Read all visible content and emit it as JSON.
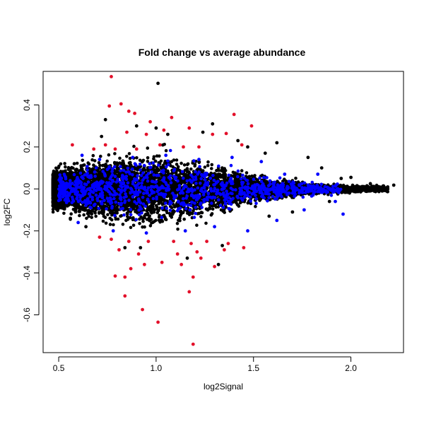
{
  "chart_data": {
    "type": "scatter",
    "title": "Fold change vs average abundance",
    "xlabel": "log2Signal",
    "ylabel": "log2FC",
    "xlim": [
      0.42,
      2.27
    ],
    "ylim": [
      -0.78,
      0.56
    ],
    "xticks": [
      0.5,
      1.0,
      1.5,
      2.0
    ],
    "xtick_labels": [
      "0.5",
      "1.0",
      "1.5",
      "2.0"
    ],
    "yticks": [
      -0.6,
      -0.4,
      -0.2,
      0.0,
      0.2,
      0.4
    ],
    "ytick_labels": [
      "-0.6",
      "-0.4",
      "-0.2",
      "0.0",
      "0.2",
      "0.4"
    ],
    "grid": false,
    "legend": "none",
    "colors": {
      "all": "#000000",
      "mid": "#0000ff",
      "high": "#e3102a"
    },
    "series": [
      {
        "color": "#000000",
        "points": [
          [
            1.01,
            0.503
          ],
          [
            0.74,
            0.33
          ],
          [
            0.9,
            0.3
          ],
          [
            1.0,
            0.29
          ],
          [
            1.06,
            0.26
          ],
          [
            1.24,
            0.27
          ],
          [
            1.29,
            0.31
          ],
          [
            1.62,
            0.22
          ],
          [
            1.78,
            0.15
          ],
          [
            0.58,
            0.12
          ],
          [
            0.56,
            -0.14
          ],
          [
            0.64,
            -0.18
          ],
          [
            0.92,
            -0.28
          ],
          [
            1.16,
            -0.33
          ],
          [
            1.34,
            -0.27
          ],
          [
            1.7,
            -0.11
          ],
          [
            1.95,
            0.05
          ],
          [
            2.0,
            0.055
          ],
          [
            2.22,
            0.018
          ],
          [
            2.18,
            0.005
          ],
          [
            2.1,
            0.025
          ],
          [
            1.89,
            -0.06
          ],
          [
            1.85,
            0.1
          ],
          [
            0.72,
            0.25
          ],
          [
            1.47,
            0.2
          ],
          [
            1.58,
            -0.13
          ],
          [
            0.84,
            -0.28
          ],
          [
            1.42,
            0.23
          ],
          [
            1.56,
            0.17
          ],
          [
            1.32,
            -0.36
          ]
        ]
      },
      {
        "color": "#0000ff",
        "points": [
          [
            0.62,
            0.16
          ],
          [
            0.71,
            0.14
          ],
          [
            0.88,
            0.15
          ],
          [
            1.05,
            0.16
          ],
          [
            1.22,
            0.14
          ],
          [
            1.39,
            0.15
          ],
          [
            1.54,
            0.13
          ],
          [
            1.66,
            0.07
          ],
          [
            1.83,
            0.07
          ],
          [
            0.6,
            -0.16
          ],
          [
            0.78,
            -0.2
          ],
          [
            0.95,
            -0.21
          ],
          [
            1.15,
            -0.2
          ],
          [
            1.3,
            -0.18
          ],
          [
            1.47,
            -0.2
          ],
          [
            1.62,
            -0.15
          ],
          [
            1.76,
            -0.1
          ],
          [
            1.92,
            -0.06
          ],
          [
            1.96,
            -0.12
          ]
        ]
      },
      {
        "color": "#e3102a",
        "points": [
          [
            0.77,
            0.535
          ],
          [
            0.82,
            0.405
          ],
          [
            0.76,
            0.395
          ],
          [
            0.86,
            0.37
          ],
          [
            0.89,
            0.36
          ],
          [
            0.97,
            0.32
          ],
          [
            1.08,
            0.34
          ],
          [
            1.4,
            0.355
          ],
          [
            1.49,
            0.3
          ],
          [
            1.36,
            0.264
          ],
          [
            1.29,
            0.26
          ],
          [
            1.17,
            0.29
          ],
          [
            1.04,
            0.28
          ],
          [
            0.95,
            0.26
          ],
          [
            0.85,
            0.27
          ],
          [
            0.74,
            0.21
          ],
          [
            0.57,
            0.21
          ],
          [
            0.68,
            0.19
          ],
          [
            0.79,
            0.19
          ],
          [
            0.9,
            0.19
          ],
          [
            1.02,
            0.21
          ],
          [
            1.14,
            0.2
          ],
          [
            1.22,
            0.2
          ],
          [
            1.44,
            0.21
          ],
          [
            0.71,
            -0.23
          ],
          [
            0.77,
            -0.24
          ],
          [
            0.86,
            -0.25
          ],
          [
            0.96,
            -0.25
          ],
          [
            1.09,
            -0.25
          ],
          [
            1.18,
            -0.26
          ],
          [
            1.26,
            -0.25
          ],
          [
            1.37,
            -0.26
          ],
          [
            1.45,
            -0.28
          ],
          [
            0.81,
            -0.29
          ],
          [
            0.91,
            -0.31
          ],
          [
            1.11,
            -0.31
          ],
          [
            1.21,
            -0.3
          ],
          [
            0.79,
            -0.415
          ],
          [
            0.84,
            -0.42
          ],
          [
            0.87,
            -0.38
          ],
          [
            0.94,
            -0.36
          ],
          [
            1.03,
            -0.35
          ],
          [
            1.13,
            -0.36
          ],
          [
            1.19,
            -0.42
          ],
          [
            1.3,
            -0.37
          ],
          [
            1.17,
            -0.49
          ],
          [
            0.84,
            -0.51
          ],
          [
            0.93,
            -0.575
          ],
          [
            1.01,
            -0.635
          ],
          [
            1.19,
            -0.74
          ],
          [
            1.23,
            -0.33
          ],
          [
            1.35,
            -0.29
          ]
        ]
      }
    ]
  }
}
